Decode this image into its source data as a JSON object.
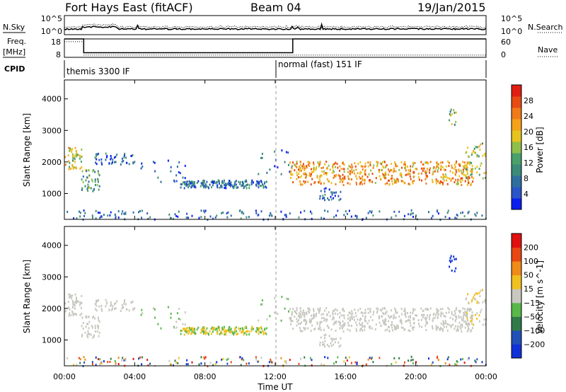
{
  "header": {
    "station": "Fort Hays East (fitACF)",
    "beam": "Beam 04",
    "date": "19/Jan/2015"
  },
  "side_labels": {
    "nsky": "N.Sky",
    "freq_top": "Freq.",
    "freq_unit": "[MHz]",
    "cpid": "CPID",
    "nsearch": "N.Search",
    "nave": "Nave"
  },
  "cpid_segments": [
    {
      "label": "themis 3300 IF",
      "start_hour": 0
    },
    {
      "label": "normal (fast) 151 IF",
      "start_hour": 12
    }
  ],
  "chart_data": [
    {
      "type": "line",
      "panel": "noise",
      "left_axis": {
        "label": "N.Sky",
        "ticks": [
          "10^5",
          "10^0"
        ]
      },
      "right_axis": {
        "label": "N.Search",
        "ticks": [
          "10^5",
          "10^0"
        ]
      },
      "xlim_hours": [
        0,
        24
      ]
    },
    {
      "type": "line",
      "panel": "frequency",
      "left_axis": {
        "label": "Freq. [MHz]",
        "ticks": [
          18,
          8
        ],
        "ylim": [
          8,
          18
        ]
      },
      "right_axis": {
        "label": "Nave",
        "ticks": [
          60,
          0
        ],
        "ylim": [
          0,
          60
        ]
      },
      "freq_steps": [
        {
          "x": 0,
          "y": 18
        },
        {
          "x": 1.1,
          "y": 18
        },
        {
          "x": 1.1,
          "y": 10.5
        },
        {
          "x": 13.0,
          "y": 10.5
        },
        {
          "x": 13.0,
          "y": 18
        },
        {
          "x": 24,
          "y": 18
        }
      ],
      "xlim_hours": [
        0,
        24
      ]
    },
    {
      "type": "heatmap",
      "panel": "power",
      "ylabel": "Slant Range [km]",
      "yticks": [
        1000,
        2000,
        3000,
        4000
      ],
      "ylim": [
        180,
        4600
      ],
      "xlim_hours": [
        0,
        24
      ],
      "colorbar": {
        "label": "Power [dB]",
        "ticks": [
          4,
          8,
          12,
          16,
          20,
          24,
          28
        ],
        "colors": [
          "#0a1eef",
          "#2a55c8",
          "#2f6fa0",
          "#3b8a7a",
          "#4aa06a",
          "#8fbf4a",
          "#e6c31e",
          "#f5a21a",
          "#f07a18",
          "#e84a14",
          "#e01e12"
        ]
      }
    },
    {
      "type": "heatmap",
      "panel": "velocity",
      "ylabel": "Slant Range [km]",
      "yticks": [
        1000,
        2000,
        3000,
        4000
      ],
      "ylim": [
        180,
        4600
      ],
      "xlim_hours": [
        0,
        24
      ],
      "xlabel": "Time UT",
      "xticks": [
        "00:00",
        "04:00",
        "08:00",
        "12:00",
        "16:00",
        "20:00",
        "00:00"
      ],
      "colorbar": {
        "label": "Velocity [m s^-1]",
        "ticks": [
          "200",
          "100",
          "50",
          "15",
          "−15",
          "−50",
          "−100",
          "−200"
        ],
        "colors": [
          "#1030d8",
          "#2050b8",
          "#307a4a",
          "#58b84a",
          "#c8c8c0",
          "#f0c020",
          "#f08a18",
          "#e84812",
          "#e01010"
        ]
      }
    }
  ]
}
